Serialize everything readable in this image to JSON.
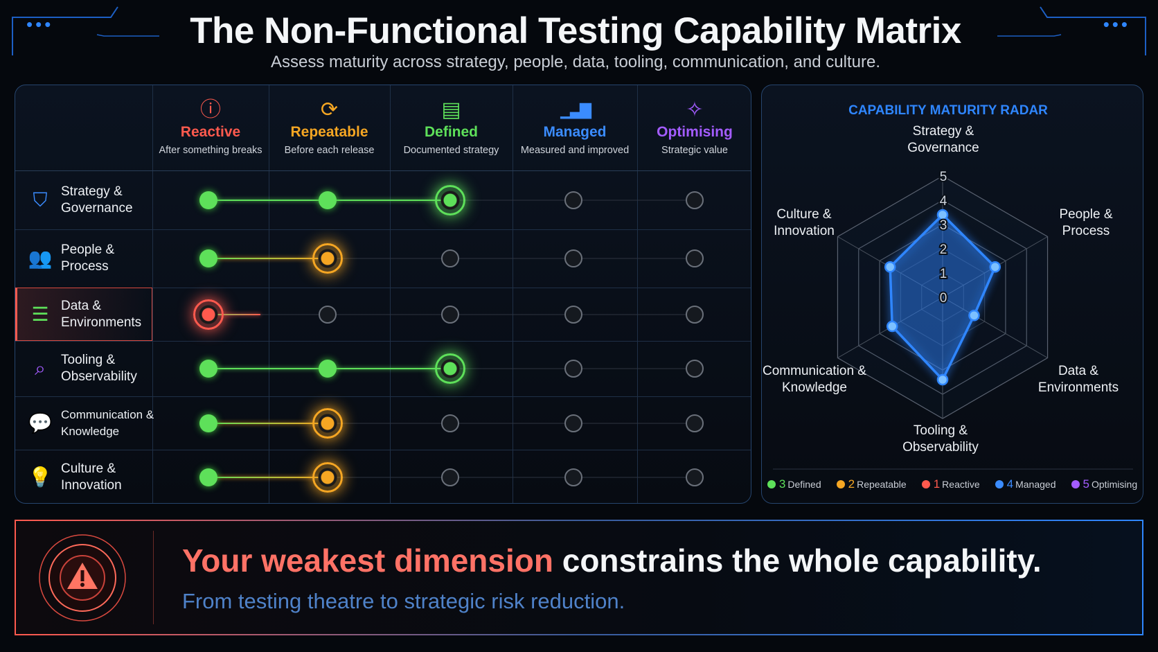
{
  "header": {
    "title": "The Non-Functional Testing Capability Matrix",
    "subtitle": "Assess maturity across strategy, people, data, tooling, communication, and culture.",
    "dots": "•••"
  },
  "levels": [
    {
      "label": "Reactive",
      "sub": "After something breaks",
      "color": "#ff5a4e",
      "icon": "alert-circle-icon",
      "glyph": "ⓘ",
      "number": "1"
    },
    {
      "label": "Repeatable",
      "sub": "Before each release",
      "color": "#f5a623",
      "icon": "refresh-cycle-icon",
      "glyph": "⟳",
      "number": "2"
    },
    {
      "label": "Defined",
      "sub": "Documented strategy",
      "color": "#5ee05a",
      "icon": "document-book-icon",
      "glyph": "▤",
      "number": "3"
    },
    {
      "label": "Managed",
      "sub": "Measured and improved",
      "color": "#3b8cff",
      "icon": "bar-chart-icon",
      "glyph": "▁▃▇",
      "number": "4"
    },
    {
      "label": "Optimising",
      "sub": "Strategic value",
      "color": "#a35cff",
      "icon": "sparkle-star-icon",
      "glyph": "✧",
      "number": "5"
    }
  ],
  "dimensions": [
    {
      "line1": "Strategy &",
      "line2": "Governance",
      "icon": "shield-check-icon",
      "glyph": "⛉",
      "icon_color": "#3b8cff",
      "level": 3
    },
    {
      "line1": "People &",
      "line2": "Process",
      "icon": "people-icon",
      "glyph": "👥",
      "icon_color": "#3b8cff",
      "level": 2
    },
    {
      "line1": "Data &",
      "line2": "Environments",
      "icon": "database-icon",
      "glyph": "☰",
      "icon_color": "#5ee05a",
      "level": 1,
      "highlighted": true
    },
    {
      "line1": "Tooling &",
      "line2": "Observability",
      "icon": "analytics-search-icon",
      "glyph": "⌕",
      "icon_color": "#a35cff",
      "level": 3
    },
    {
      "line1": "Communication &",
      "line2": "Knowledge",
      "icon": "chat-bubble-icon",
      "glyph": "💬",
      "icon_color": "#3b8cff",
      "level": 2
    },
    {
      "line1": "Culture &",
      "line2": "Innovation",
      "icon": "lightbulb-icon",
      "glyph": "💡",
      "icon_color": "#a35cff",
      "level": 2
    }
  ],
  "chart_data": {
    "type": "radar",
    "title": "CAPABILITY MATURITY RADAR",
    "axes": [
      "Strategy & Governance",
      "People & Process",
      "Data & Environments",
      "Tooling & Observability",
      "Communication & Knowledge",
      "Culture & Innovation"
    ],
    "ticks": [
      "0",
      "1",
      "2",
      "3",
      "4",
      "5"
    ],
    "range": [
      0,
      5
    ],
    "values": [
      3.4,
      2.5,
      1.5,
      3.4,
      2.4,
      2.5
    ],
    "series_color": "#2f86ff",
    "legend": [
      {
        "num": "3",
        "label": "Defined",
        "color": "#5ee05a"
      },
      {
        "num": "2",
        "label": "Repeatable",
        "color": "#f5a623"
      },
      {
        "num": "1",
        "label": "Reactive",
        "color": "#ff5a4e"
      },
      {
        "num": "4",
        "label": "Managed",
        "color": "#3b8cff"
      },
      {
        "num": "5",
        "label": "Optimising",
        "color": "#a35cff"
      }
    ],
    "legend_position": "bottom"
  },
  "banner": {
    "headline_highlight": "Your weakest dimension",
    "headline_rest": " constrains the whole capability.",
    "subline": "From testing theatre to strategic risk reduction.",
    "icon": "warning-triangle-icon"
  }
}
